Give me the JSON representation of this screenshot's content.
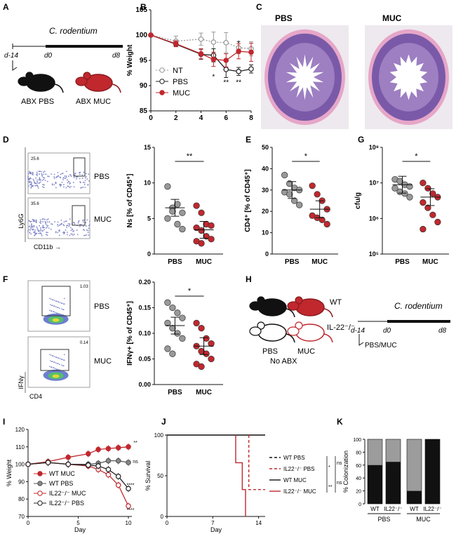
{
  "panels": {
    "A": "A",
    "B": "B",
    "C": "C",
    "D": "D",
    "E": "E",
    "F": "F",
    "G": "G",
    "H": "H",
    "I": "I",
    "J": "J",
    "K": "K"
  },
  "panelA": {
    "title": "C. rodentium",
    "d14": "d-14",
    "d0": "d0",
    "d8": "d8",
    "mouse1": "ABX  PBS",
    "mouse2": "ABX MUC"
  },
  "panelC": {
    "left": "PBS",
    "right": "MUC"
  },
  "panelD": {
    "pbs": "PBS",
    "muc": "MUC",
    "gate1": "25.6",
    "gate2": "35.6",
    "yaxis": "Ly6G",
    "xaxis": "CD11b"
  },
  "panelF": {
    "pbs": "PBS",
    "muc": "MUC",
    "gate1": "1.03",
    "gate2": "0.14",
    "yaxis": "IFNγ",
    "xaxis": "CD4"
  },
  "panelH": {
    "wt": "WT",
    "ko": "IL-22⁻/⁻",
    "pbs": "PBS",
    "muc": "MUC",
    "noabx": "No ABX",
    "title": "C. rodentium",
    "d14": "d-14",
    "d0": "d0",
    "d8": "d8",
    "treat": "PBS/MUC"
  },
  "chart_data": [
    {
      "id": "B",
      "type": "line",
      "ylabel": "% Weight",
      "x": [
        0,
        2,
        4,
        5,
        6,
        7,
        8
      ],
      "ylim": [
        85,
        105
      ],
      "xlim": [
        0,
        8
      ],
      "series": [
        {
          "name": "NT",
          "color": "#999999",
          "values": [
            100,
            98.8,
            99.2,
            98.6,
            98.5,
            97.5,
            97.3
          ],
          "err": [
            0,
            1,
            1.2,
            2,
            2,
            1.2,
            1.4
          ]
        },
        {
          "name": "PBS",
          "color": "#222222",
          "values": [
            100,
            98.2,
            96.2,
            96,
            93.2,
            92.8,
            93.3
          ],
          "err": [
            0,
            0.5,
            1,
            1.3,
            1.6,
            0.8,
            0.8
          ]
        },
        {
          "name": "MUC",
          "color": "#c0282e",
          "values": [
            100,
            98.3,
            96.3,
            95.2,
            95,
            96.8,
            96.6
          ],
          "err": [
            0,
            0.6,
            1,
            1.4,
            1.3,
            1.5,
            1.8
          ]
        }
      ],
      "annotations": [
        "*",
        "**",
        "*",
        "**"
      ]
    },
    {
      "id": "D",
      "type": "scatter",
      "ylabel": "Ns [% of CD45⁺]",
      "categories": [
        "PBS",
        "MUC"
      ],
      "ylim": [
        0,
        15
      ],
      "yticks": [
        0,
        5,
        10,
        15
      ],
      "sig": "**",
      "series": [
        {
          "name": "PBS",
          "color": "#999999",
          "values": [
            9.5,
            6.5,
            7,
            5.8,
            5,
            6,
            4.2,
            3.5
          ]
        },
        {
          "name": "MUC",
          "color": "#c0282e",
          "values": [
            6.8,
            5.8,
            4.2,
            4,
            3.7,
            3.3,
            2.5,
            2.1,
            1.8,
            1.5
          ]
        }
      ],
      "means": [
        6.5,
        3.4
      ]
    },
    {
      "id": "E",
      "type": "scatter",
      "ylabel": "CD4⁺ [% of CD45⁺]",
      "categories": [
        "PBS",
        "MUC"
      ],
      "ylim": [
        0,
        50
      ],
      "yticks": [
        0,
        10,
        20,
        30,
        40,
        50
      ],
      "sig": "*",
      "series": [
        {
          "name": "PBS",
          "color": "#999999",
          "values": [
            37,
            33,
            31,
            30,
            29,
            28,
            25,
            23
          ]
        },
        {
          "name": "MUC",
          "color": "#c0282e",
          "values": [
            32,
            28,
            25,
            21,
            18,
            17,
            16,
            14
          ]
        }
      ],
      "means": [
        30,
        21
      ]
    },
    {
      "id": "G",
      "type": "scatter",
      "ylabel": "cfu/g",
      "categories": [
        "PBS",
        "MUC"
      ],
      "log": true,
      "ylim": [
        5,
        8
      ],
      "yticks": [
        "10⁵",
        "10⁶",
        "10⁷",
        "10⁸"
      ],
      "sig": "*",
      "series": [
        {
          "name": "PBS",
          "color": "#999999",
          "values": [
            7.1,
            7.05,
            6.95,
            6.9,
            6.85,
            6.75,
            6.7,
            6.6
          ]
        },
        {
          "name": "MUC",
          "color": "#c0282e",
          "values": [
            7.0,
            6.85,
            6.7,
            6.6,
            6.45,
            6.3,
            6.1,
            5.9,
            5.7
          ]
        }
      ],
      "means": [
        6.95,
        6.6
      ]
    },
    {
      "id": "F",
      "type": "scatter",
      "ylabel": "IFNγ+ [% of CD45⁺]",
      "categories": [
        "PBS",
        "MUC"
      ],
      "ylim": [
        0,
        0.2
      ],
      "yticks": [
        "0.00",
        "0.05",
        "0.10",
        "0.15",
        "0.20"
      ],
      "sig": "*",
      "series": [
        {
          "name": "PBS",
          "color": "#999999",
          "values": [
            0.16,
            0.15,
            0.14,
            0.13,
            0.12,
            0.11,
            0.1,
            0.09,
            0.07,
            0.06
          ]
        },
        {
          "name": "MUC",
          "color": "#c0282e",
          "values": [
            0.12,
            0.11,
            0.09,
            0.08,
            0.075,
            0.065,
            0.06,
            0.05,
            0.04,
            0.035
          ]
        }
      ],
      "means": [
        0.115,
        0.075
      ]
    },
    {
      "id": "I",
      "type": "line",
      "ylabel": "% Weight",
      "xlabel": "Day",
      "x": [
        0,
        2,
        4,
        6,
        7,
        8,
        9,
        10
      ],
      "ylim": [
        70,
        120
      ],
      "yticks": [
        70,
        80,
        90,
        100,
        110,
        120
      ],
      "xticks": [
        0,
        5,
        10
      ],
      "series": [
        {
          "name": "WT MUC",
          "color": "#c0282e",
          "fill": "#c0282e",
          "values": [
            100,
            101.5,
            104,
            106,
            108.5,
            109,
            109.5,
            110
          ]
        },
        {
          "name": "WT PBS",
          "color": "#555555",
          "fill": "#888888",
          "values": [
            100,
            101,
            100,
            100,
            100.5,
            102,
            102,
            101
          ]
        },
        {
          "name": "IL22⁻/⁻ MUC",
          "color": "#c0282e",
          "fill": "#ffffff",
          "values": [
            100,
            101,
            100,
            99,
            97,
            94,
            88,
            76
          ]
        },
        {
          "name": "IL22⁻/⁻ PBS",
          "color": "#222222",
          "fill": "#ffffff",
          "values": [
            100,
            101,
            100,
            99.5,
            99,
            97,
            93,
            86
          ]
        }
      ],
      "annotations": [
        "**",
        "ns",
        "****",
        "****"
      ]
    },
    {
      "id": "J",
      "type": "line",
      "ylabel": "% Survival",
      "xlabel": "Day",
      "xlim": [
        0,
        15
      ],
      "ylim": [
        0,
        100
      ],
      "yticks": [
        0,
        50,
        100
      ],
      "xticks": [
        0,
        7,
        14
      ],
      "series": [
        {
          "name": "WT PBS",
          "color": "#111111",
          "dash": true
        },
        {
          "name": "IL22⁻/⁻ PBS",
          "color": "#c0282e",
          "dash": true
        },
        {
          "name": "WT MUC",
          "color": "#111111",
          "dash": false
        },
        {
          "name": "IL22⁻/⁻ MUC",
          "color": "#c0282e",
          "dash": false
        }
      ],
      "annotations": [
        "*",
        "ns",
        "**",
        "ns"
      ]
    },
    {
      "id": "K",
      "type": "bar",
      "ylabel": "% Colonization",
      "ylim": [
        0,
        100
      ],
      "yticks": [
        0,
        20,
        40,
        60,
        80,
        100
      ],
      "categories": [
        "WT",
        "IL22⁻/⁻",
        "WT",
        "IL22⁻/⁻"
      ],
      "groups": [
        "PBS",
        "MUC"
      ],
      "values": [
        60,
        65,
        20,
        100
      ]
    }
  ]
}
